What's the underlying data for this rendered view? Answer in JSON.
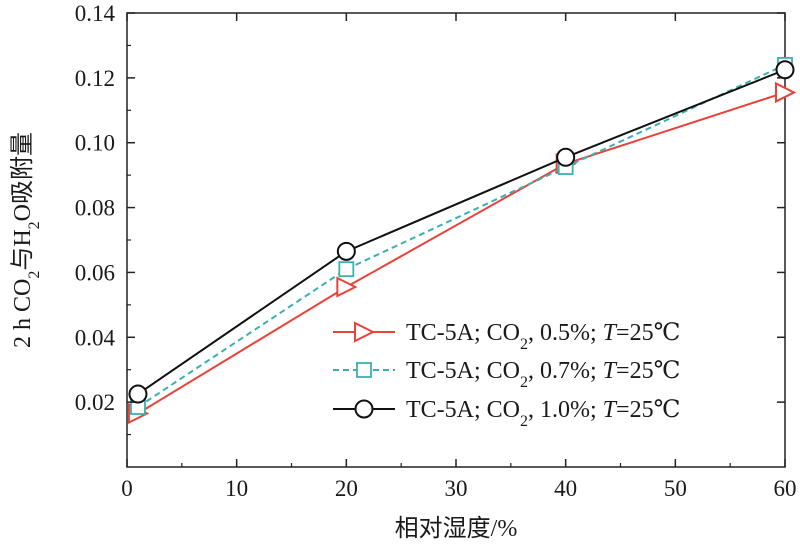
{
  "chart_data": {
    "type": "line",
    "title": "",
    "xlabel": "相对湿度/%",
    "ylabel": "2 h CO₂与H₂O吸附量",
    "xlim": [
      0,
      60
    ],
    "ylim": [
      0.0,
      0.14
    ],
    "xticks": [
      0,
      10,
      20,
      30,
      40,
      50,
      60
    ],
    "yticks": [
      0.02,
      0.04,
      0.06,
      0.08,
      0.1,
      0.12,
      0.14
    ],
    "xtick_labels": [
      "0",
      "10",
      "20",
      "30",
      "40",
      "50",
      "60"
    ],
    "ytick_labels": [
      "0.02",
      "0.04",
      "0.06",
      "0.08",
      "0.10",
      "0.12",
      "0.14"
    ],
    "grid": false,
    "legend_position": "lower-right",
    "series": [
      {
        "name": "TC-5A; CO₂, 0.5%; T=25℃",
        "legend": {
          "pre": "TC-5A; CO",
          "sub": "2",
          "mid": ", 0.5%; ",
          "ital": "T",
          "post": "=25℃"
        },
        "color": "#e8433a",
        "marker": "triangle-right",
        "line_style": "solid",
        "x": [
          1,
          20,
          40,
          60
        ],
        "y": [
          0.0165,
          0.0555,
          0.0935,
          0.1155
        ]
      },
      {
        "name": "TC-5A; CO₂, 0.7%; T=25℃",
        "legend": {
          "pre": "TC-5A; CO",
          "sub": "2",
          "mid": ", 0.7%; ",
          "ital": "T",
          "post": "=25℃"
        },
        "color": "#3bb0b0",
        "marker": "square",
        "line_style": "dashed",
        "x": [
          1,
          20,
          40,
          60
        ],
        "y": [
          0.0185,
          0.061,
          0.0925,
          0.124
        ]
      },
      {
        "name": "TC-5A; CO₂, 1.0%; T=25℃",
        "legend": {
          "pre": "TC-5A; CO",
          "sub": "2",
          "mid": ", 1.0%; ",
          "ital": "T",
          "post": "=25℃"
        },
        "color": "#111111",
        "marker": "circle",
        "line_style": "solid",
        "x": [
          1,
          20,
          40,
          60
        ],
        "y": [
          0.0225,
          0.0665,
          0.0955,
          0.1225
        ]
      }
    ]
  }
}
